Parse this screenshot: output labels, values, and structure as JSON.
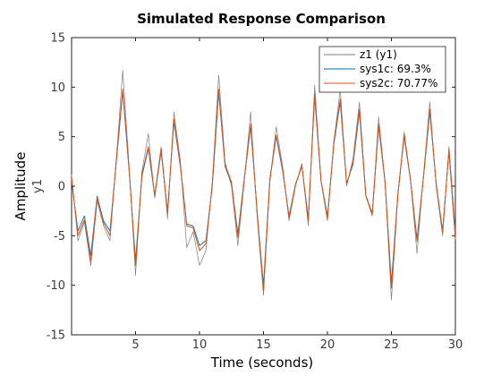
{
  "chart_data": {
    "type": "line",
    "title": "Simulated Response Comparison",
    "xlabel": "Time (seconds)",
    "ylabel": "Amplitude",
    "ylabel_sub": "y1",
    "xlim": [
      0,
      30
    ],
    "ylim": [
      -15,
      15
    ],
    "xticks": [
      5,
      10,
      15,
      20,
      25,
      30
    ],
    "yticks": [
      -15,
      -10,
      -5,
      0,
      5,
      10,
      15
    ],
    "grid": false,
    "legend_position": "top-right",
    "series": [
      {
        "name": "z1 (y1)",
        "color": "#808080",
        "x": [
          0,
          0.5,
          1,
          1.5,
          2,
          2.5,
          3,
          3.5,
          4,
          4.5,
          5,
          5.5,
          6,
          6.5,
          7,
          7.5,
          8,
          8.5,
          9,
          9.5,
          10,
          10.5,
          11,
          11.5,
          12,
          12.5,
          13,
          13.5,
          14,
          14.5,
          15,
          15.5,
          16,
          16.5,
          17,
          17.5,
          18,
          18.5,
          19,
          19.5,
          20,
          20.5,
          21,
          21.5,
          22,
          22.5,
          23,
          23.5,
          24,
          24.5,
          25,
          25.5,
          26,
          26.5,
          27,
          27.5,
          28,
          28.5,
          29,
          29.5,
          30
        ],
        "values": [
          1.2,
          -5.5,
          -3.6,
          -8.0,
          -1.5,
          -4.0,
          -5.5,
          2.8,
          11.7,
          2.0,
          -9.0,
          1.5,
          5.3,
          -1.2,
          4.0,
          -3.3,
          7.5,
          2.6,
          -6.2,
          -4.6,
          -8.0,
          -6.5,
          0.5,
          11.2,
          2.4,
          0.0,
          -6.0,
          0.5,
          7.5,
          -3.0,
          -11.0,
          0.5,
          6.0,
          2.0,
          -3.5,
          0.0,
          2.3,
          -4.0,
          10.2,
          0.5,
          -3.5,
          4.5,
          9.8,
          0.0,
          2.8,
          8.5,
          -1.0,
          -3.0,
          7.0,
          0.5,
          -11.5,
          -1.0,
          5.5,
          0.5,
          -6.8,
          1.0,
          8.5,
          0.0,
          -5.0,
          4.0,
          -4.5
        ]
      },
      {
        "name": "sys1c: 69.3%",
        "color": "#0072bd",
        "x": [
          0,
          0.5,
          1,
          1.5,
          2,
          2.5,
          3,
          3.5,
          4,
          4.5,
          5,
          5.5,
          6,
          6.5,
          7,
          7.5,
          8,
          8.5,
          9,
          9.5,
          10,
          10.5,
          11,
          11.5,
          12,
          12.5,
          13,
          13.5,
          14,
          14.5,
          15,
          15.5,
          16,
          16.5,
          17,
          17.5,
          18,
          18.5,
          19,
          19.5,
          20,
          20.5,
          21,
          21.5,
          22,
          22.5,
          23,
          23.5,
          24,
          24.5,
          25,
          25.5,
          26,
          26.5,
          27,
          27.5,
          28,
          28.5,
          29,
          29.5,
          30
        ],
        "values": [
          0.5,
          -4.5,
          -3.0,
          -7.0,
          -1.0,
          -3.5,
          -4.5,
          2.5,
          9.5,
          1.5,
          -7.5,
          1.0,
          3.8,
          -1.0,
          3.5,
          -2.5,
          6.5,
          2.0,
          -3.8,
          -4.0,
          -6.0,
          -5.5,
          0.0,
          9.5,
          2.0,
          0.3,
          -4.8,
          0.8,
          6.0,
          -2.5,
          -10.0,
          0.8,
          5.0,
          1.5,
          -3.0,
          0.2,
          2.0,
          -3.2,
          9.0,
          0.5,
          -3.0,
          4.2,
          8.5,
          0.3,
          2.2,
          7.5,
          -1.0,
          -2.7,
          6.0,
          0.5,
          -9.8,
          -0.8,
          5.0,
          0.5,
          -5.3,
          0.8,
          7.5,
          0.3,
          -4.5,
          3.5,
          -5.2
        ]
      },
      {
        "name": "sys2c: 70.77%",
        "color": "#d95319",
        "x": [
          0,
          0.5,
          1,
          1.5,
          2,
          2.5,
          3,
          3.5,
          4,
          4.5,
          5,
          5.5,
          6,
          6.5,
          7,
          7.5,
          8,
          8.5,
          9,
          9.5,
          10,
          10.5,
          11,
          11.5,
          12,
          12.5,
          13,
          13.5,
          14,
          14.5,
          15,
          15.5,
          16,
          16.5,
          17,
          17.5,
          18,
          18.5,
          19,
          19.5,
          20,
          20.5,
          21,
          21.5,
          22,
          22.5,
          23,
          23.5,
          24,
          24.5,
          25,
          25.5,
          26,
          26.5,
          27,
          27.5,
          28,
          28.5,
          29,
          29.5,
          30
        ],
        "values": [
          0.8,
          -5.0,
          -3.4,
          -7.6,
          -1.2,
          -3.7,
          -5.0,
          2.7,
          9.8,
          1.7,
          -8.0,
          1.2,
          4.0,
          -0.9,
          3.8,
          -2.7,
          6.8,
          2.2,
          -4.0,
          -4.2,
          -6.5,
          -5.8,
          0.2,
          9.8,
          2.2,
          0.4,
          -5.2,
          0.7,
          6.3,
          -2.6,
          -10.5,
          0.6,
          5.2,
          1.7,
          -3.2,
          0.1,
          2.1,
          -3.5,
          9.4,
          0.6,
          -3.3,
          4.4,
          8.8,
          0.2,
          2.4,
          7.8,
          -0.9,
          -2.9,
          6.3,
          0.4,
          -10.3,
          -0.9,
          5.2,
          0.6,
          -5.6,
          0.9,
          7.8,
          0.2,
          -4.7,
          3.7,
          -5.4
        ]
      }
    ]
  }
}
